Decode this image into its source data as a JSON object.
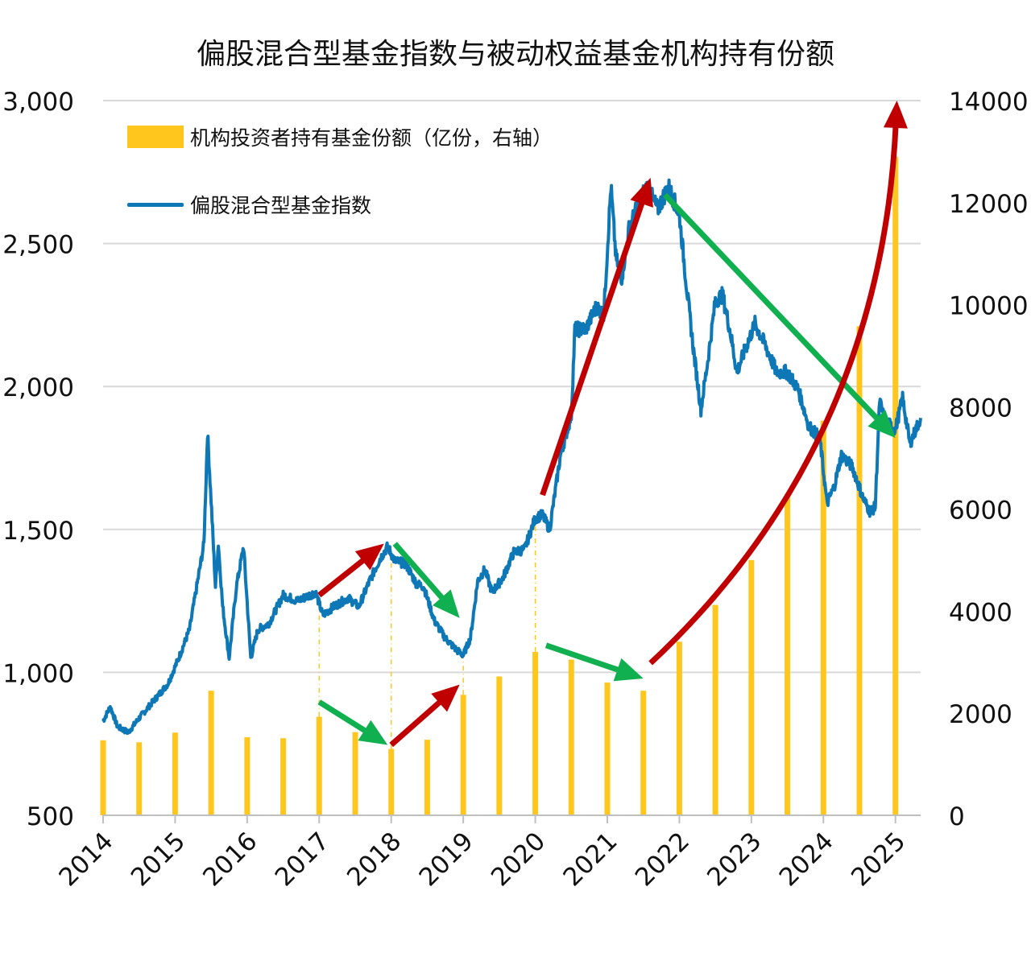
{
  "chart_data": {
    "type": "bar+line",
    "title": "偏股混合型基金指数与被动权益基金机构持有份额",
    "colors": {
      "bars": "#FFC61E",
      "line": "#0E78B7",
      "up_arrow": "#C00000",
      "down_arrow": "#10B050",
      "grid": "#d9d9d9"
    },
    "legend": {
      "position": "top-left",
      "bars_label": "机构投资者持有基金份额（亿份，右轴）",
      "line_label": "偏股混合型基金指数"
    },
    "left_axis": {
      "ylim": [
        500,
        3000
      ],
      "ticks": [
        "500",
        "1,000",
        "1,500",
        "2,000",
        "2,500",
        "3,000"
      ],
      "tick_values": [
        500,
        1000,
        1500,
        2000,
        2500,
        3000
      ]
    },
    "right_axis": {
      "ylim": [
        0,
        14000
      ],
      "ticks": [
        "0",
        "2000",
        "4000",
        "6000",
        "8000",
        "10000",
        "12000",
        "14000"
      ],
      "tick_values": [
        0,
        2000,
        4000,
        6000,
        8000,
        10000,
        12000,
        14000
      ]
    },
    "x_axis": {
      "range": [
        2014.0,
        2025.35
      ],
      "ticks": [
        "2014",
        "2015",
        "2016",
        "2017",
        "2018",
        "2019",
        "2020",
        "2021",
        "2022",
        "2023",
        "2024",
        "2025"
      ],
      "tick_values": [
        2014,
        2015,
        2016,
        2017,
        2018,
        2019,
        2020,
        2021,
        2022,
        2023,
        2024,
        2025
      ]
    },
    "bars": {
      "name": "机构投资者持有基金份额（亿份，右轴）",
      "x": [
        2014.0,
        2014.5,
        2015.0,
        2015.5,
        2016.0,
        2016.5,
        2017.0,
        2017.5,
        2018.0,
        2018.5,
        2019.0,
        2019.5,
        2020.0,
        2020.5,
        2021.0,
        2021.5,
        2022.0,
        2022.5,
        2023.0,
        2023.5,
        2024.0,
        2024.5,
        2025.0
      ],
      "values": [
        1470,
        1430,
        1620,
        2440,
        1530,
        1510,
        1930,
        1630,
        1300,
        1480,
        2360,
        2720,
        3200,
        3050,
        2600,
        2440,
        3400,
        4120,
        5000,
        6280,
        7730,
        9580,
        12900
      ]
    },
    "line": {
      "name": "偏股混合型基金指数",
      "anchors": [
        [
          2014.0,
          830
        ],
        [
          2014.1,
          880
        ],
        [
          2014.2,
          810
        ],
        [
          2014.35,
          790
        ],
        [
          2014.5,
          840
        ],
        [
          2014.7,
          900
        ],
        [
          2014.9,
          960
        ],
        [
          2015.05,
          1050
        ],
        [
          2015.2,
          1150
        ],
        [
          2015.3,
          1300
        ],
        [
          2015.4,
          1450
        ],
        [
          2015.45,
          1840
        ],
        [
          2015.52,
          1500
        ],
        [
          2015.56,
          1300
        ],
        [
          2015.6,
          1450
        ],
        [
          2015.66,
          1230
        ],
        [
          2015.75,
          1050
        ],
        [
          2015.85,
          1300
        ],
        [
          2015.95,
          1440
        ],
        [
          2016.05,
          1050
        ],
        [
          2016.15,
          1150
        ],
        [
          2016.3,
          1170
        ],
        [
          2016.5,
          1270
        ],
        [
          2016.7,
          1250
        ],
        [
          2016.95,
          1280
        ],
        [
          2017.05,
          1200
        ],
        [
          2017.2,
          1230
        ],
        [
          2017.4,
          1260
        ],
        [
          2017.55,
          1230
        ],
        [
          2017.7,
          1320
        ],
        [
          2017.85,
          1400
        ],
        [
          2017.95,
          1440
        ],
        [
          2018.05,
          1390
        ],
        [
          2018.2,
          1380
        ],
        [
          2018.35,
          1310
        ],
        [
          2018.45,
          1300
        ],
        [
          2018.6,
          1180
        ],
        [
          2018.75,
          1120
        ],
        [
          2018.9,
          1080
        ],
        [
          2019.0,
          1060
        ],
        [
          2019.1,
          1120
        ],
        [
          2019.2,
          1320
        ],
        [
          2019.3,
          1360
        ],
        [
          2019.4,
          1280
        ],
        [
          2019.55,
          1330
        ],
        [
          2019.7,
          1420
        ],
        [
          2019.85,
          1430
        ],
        [
          2020.0,
          1540
        ],
        [
          2020.1,
          1550
        ],
        [
          2020.2,
          1500
        ],
        [
          2020.35,
          1760
        ],
        [
          2020.5,
          1900
        ],
        [
          2020.55,
          2200
        ],
        [
          2020.7,
          2200
        ],
        [
          2020.85,
          2280
        ],
        [
          2020.95,
          2250
        ],
        [
          2021.05,
          2700
        ],
        [
          2021.12,
          2450
        ],
        [
          2021.2,
          2380
        ],
        [
          2021.3,
          2550
        ],
        [
          2021.45,
          2650
        ],
        [
          2021.55,
          2700
        ],
        [
          2021.7,
          2620
        ],
        [
          2021.85,
          2700
        ],
        [
          2022.0,
          2600
        ],
        [
          2022.1,
          2350
        ],
        [
          2022.2,
          2120
        ],
        [
          2022.3,
          1920
        ],
        [
          2022.4,
          2100
        ],
        [
          2022.5,
          2300
        ],
        [
          2022.6,
          2320
        ],
        [
          2022.7,
          2200
        ],
        [
          2022.8,
          2050
        ],
        [
          2022.9,
          2120
        ],
        [
          2023.05,
          2220
        ],
        [
          2023.2,
          2140
        ],
        [
          2023.35,
          2050
        ],
        [
          2023.5,
          2050
        ],
        [
          2023.65,
          1990
        ],
        [
          2023.8,
          1860
        ],
        [
          2023.95,
          1820
        ],
        [
          2024.05,
          1590
        ],
        [
          2024.15,
          1650
        ],
        [
          2024.25,
          1760
        ],
        [
          2024.4,
          1720
        ],
        [
          2024.55,
          1610
        ],
        [
          2024.65,
          1560
        ],
        [
          2024.72,
          1580
        ],
        [
          2024.78,
          1950
        ],
        [
          2024.85,
          1880
        ],
        [
          2025.0,
          1850
        ],
        [
          2025.1,
          1960
        ],
        [
          2025.2,
          1800
        ],
        [
          2025.35,
          1890
        ]
      ]
    },
    "arrows": [
      {
        "kind": "up",
        "from": [
          2017.0,
          1270
        ],
        "to": [
          2017.9,
          1450
        ]
      },
      {
        "kind": "down",
        "from": [
          2018.05,
          1450
        ],
        "to": [
          2018.95,
          1190
        ]
      },
      {
        "kind": "down",
        "from": [
          2017.0,
          2220
        ],
        "to": [
          2017.95,
          1380
        ]
      },
      {
        "kind": "up",
        "from": [
          2018.0,
          1380
        ],
        "to": [
          2018.95,
          2560
        ]
      },
      {
        "kind": "up",
        "from": [
          2020.1,
          1620
        ],
        "to": [
          2021.6,
          2730
        ]
      },
      {
        "kind": "down",
        "from": [
          2020.15,
          3330
        ],
        "to": [
          2021.5,
          2680
        ]
      },
      {
        "kind": "down",
        "from": [
          2021.8,
          2670
        ],
        "to": [
          2025.0,
          1820
        ]
      },
      {
        "kind": "up_curve",
        "from": [
          2021.6,
          2980
        ],
        "control": [
          2024.8,
          7200
        ],
        "to": [
          2025.02,
          14000
        ]
      }
    ],
    "guides": [
      {
        "x": 2017.0,
        "from_bar": 1930,
        "to_index": 1240
      },
      {
        "x": 2018.0,
        "from_bar": 1300,
        "to_index": 1440
      },
      {
        "x": 2019.0,
        "from_bar": 2360,
        "to_index": 1060
      },
      {
        "x": 2020.0,
        "from_bar": 3200,
        "to_index": 1540
      }
    ]
  }
}
